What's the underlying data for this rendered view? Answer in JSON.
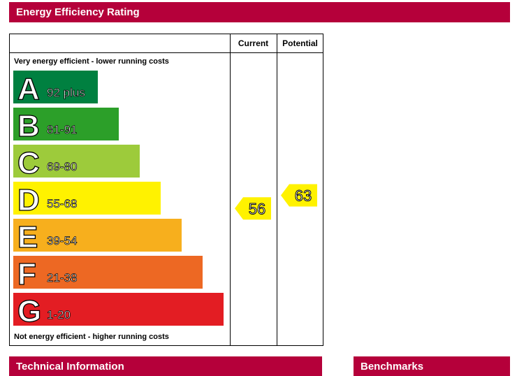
{
  "headers": {
    "energy": "Energy Efficiency Rating",
    "technical": "Technical Information",
    "benchmarks": "Benchmarks"
  },
  "chart_data": {
    "type": "bar",
    "top_label": "Very energy efficient - lower running costs",
    "bottom_label": "Not energy efficient - higher running costs",
    "columns": [
      "Current",
      "Potential"
    ],
    "bands": [
      {
        "letter": "A",
        "range": "92 plus",
        "color": "#008040"
      },
      {
        "letter": "B",
        "range": "81-91",
        "color": "#2c9f29"
      },
      {
        "letter": "C",
        "range": "69-80",
        "color": "#9dcb3b"
      },
      {
        "letter": "D",
        "range": "55-68",
        "color": "#fff200"
      },
      {
        "letter": "E",
        "range": "39-54",
        "color": "#f7af1d"
      },
      {
        "letter": "F",
        "range": "21-38",
        "color": "#ed6823"
      },
      {
        "letter": "G",
        "range": "1-20",
        "color": "#e31d23"
      }
    ],
    "ratings": [
      {
        "column": "Current",
        "value": 56,
        "band": "D",
        "color": "#fff200"
      },
      {
        "column": "Potential",
        "value": 63,
        "band": "D",
        "color": "#fff200"
      }
    ]
  }
}
